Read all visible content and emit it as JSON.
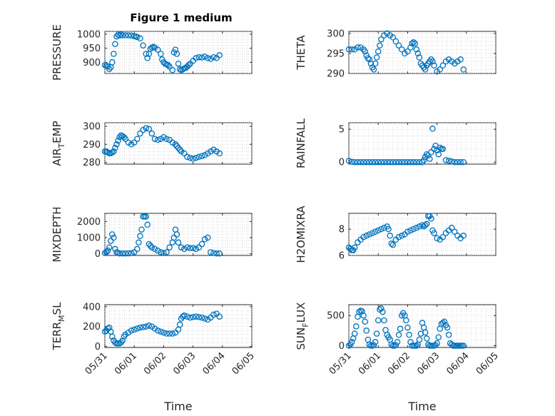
{
  "figure": {
    "title": "Figure 1 medium",
    "background": "#ffffff"
  },
  "colors": {
    "marker": "#0072BD",
    "axis": "#262626",
    "grid": "#c8c8c8"
  },
  "chart_data": [
    {
      "type": "scatter",
      "id": "pressure",
      "ylabel": "PRESSURE",
      "ylabel_sub": null,
      "ylim": [
        860,
        1010
      ],
      "yticks": [
        900,
        950,
        1000
      ],
      "xlim": [
        0,
        5
      ],
      "grid": true,
      "x": [
        0.0,
        0.05,
        0.1,
        0.15,
        0.2,
        0.25,
        0.3,
        0.35,
        0.4,
        0.45,
        0.5,
        0.55,
        0.6,
        0.7,
        0.8,
        0.9,
        1.0,
        1.05,
        1.1,
        1.2,
        1.3,
        1.4,
        1.45,
        1.5,
        1.55,
        1.6,
        1.65,
        1.7,
        1.8,
        1.9,
        1.95,
        2.0,
        2.05,
        2.1,
        2.15,
        2.2,
        2.3,
        2.35,
        2.4,
        2.45,
        2.5,
        2.55,
        2.6,
        2.65,
        2.7,
        2.75,
        2.8,
        2.85,
        2.9,
        3.0,
        3.1,
        3.2,
        3.3,
        3.4,
        3.5,
        3.6,
        3.7,
        3.8,
        3.9
      ],
      "y": [
        890,
        888,
        885,
        876,
        882,
        900,
        930,
        965,
        992,
        998,
        995,
        999,
        996,
        996,
        996,
        995,
        993,
        992,
        990,
        985,
        960,
        930,
        915,
        930,
        948,
        952,
        955,
        952,
        945,
        930,
        910,
        900,
        895,
        892,
        890,
        885,
        872,
        935,
        945,
        930,
        895,
        875,
        872,
        875,
        878,
        880,
        885,
        890,
        895,
        905,
        915,
        918,
        917,
        920,
        915,
        912,
        918,
        915,
        925
      ]
    },
    {
      "type": "scatter",
      "id": "theta",
      "ylabel": "THETA",
      "ylabel_sub": null,
      "ylim": [
        290,
        300.5
      ],
      "yticks": [
        290,
        295,
        300
      ],
      "xlim": [
        0,
        5
      ],
      "grid": true,
      "x": [
        0.0,
        0.1,
        0.2,
        0.3,
        0.4,
        0.5,
        0.55,
        0.6,
        0.65,
        0.7,
        0.75,
        0.8,
        0.85,
        0.9,
        0.95,
        1.0,
        1.05,
        1.1,
        1.2,
        1.3,
        1.4,
        1.5,
        1.6,
        1.7,
        1.8,
        1.9,
        2.0,
        2.1,
        2.15,
        2.2,
        2.25,
        2.3,
        2.35,
        2.4,
        2.45,
        2.5,
        2.55,
        2.6,
        2.65,
        2.7,
        2.75,
        2.8,
        2.85,
        2.9,
        3.0,
        3.1,
        3.2,
        3.3,
        3.4,
        3.5,
        3.6,
        3.7,
        3.8,
        3.9
      ],
      "y": [
        296,
        296,
        296,
        296.5,
        296.5,
        296,
        295.5,
        294.5,
        293.8,
        293.5,
        292.5,
        291.5,
        291,
        292.5,
        294,
        295.5,
        297,
        298.5,
        299.5,
        300,
        299.5,
        299,
        298,
        297,
        296,
        295,
        295.5,
        296.5,
        297.5,
        297.8,
        297.5,
        296,
        295,
        294,
        292.5,
        292,
        291.5,
        291,
        292,
        292.5,
        293,
        293.5,
        293,
        292,
        290.5,
        291,
        292,
        293,
        293.5,
        293,
        292.5,
        293,
        293.5,
        291
      ]
    },
    {
      "type": "scatter",
      "id": "airtemp",
      "ylabel": "AIR",
      "ylabel_sub": "T",
      "ylabel_after": "EMP",
      "ylim": [
        279,
        302
      ],
      "yticks": [
        280,
        290,
        300
      ],
      "xlim": [
        0,
        5
      ],
      "grid": true,
      "x": [
        0.0,
        0.05,
        0.1,
        0.15,
        0.2,
        0.25,
        0.3,
        0.35,
        0.4,
        0.45,
        0.5,
        0.55,
        0.6,
        0.65,
        0.7,
        0.8,
        0.9,
        1.0,
        1.1,
        1.2,
        1.3,
        1.4,
        1.5,
        1.6,
        1.7,
        1.8,
        1.9,
        2.0,
        2.1,
        2.2,
        2.3,
        2.4,
        2.45,
        2.5,
        2.55,
        2.6,
        2.7,
        2.8,
        2.9,
        3.0,
        3.1,
        3.2,
        3.3,
        3.4,
        3.5,
        3.6,
        3.7,
        3.8,
        3.9
      ],
      "y": [
        286,
        286,
        285.5,
        285,
        285,
        285.5,
        286,
        288,
        290,
        292,
        294,
        295,
        294.5,
        294,
        293,
        291,
        290,
        291,
        293,
        296,
        298,
        299,
        298.5,
        296,
        293,
        292.5,
        293,
        294,
        293,
        292.5,
        291,
        290,
        289,
        288,
        287,
        286,
        285,
        283,
        282.5,
        282,
        282.5,
        283,
        283.5,
        284,
        285,
        286,
        287,
        286,
        285
      ]
    },
    {
      "type": "scatter",
      "id": "rainfall",
      "ylabel": "RAINFALL",
      "ylabel_sub": null,
      "ylim": [
        -0.3,
        6
      ],
      "yticks": [
        0,
        5
      ],
      "xlim": [
        0,
        5
      ],
      "grid": true,
      "x": [
        0.0,
        0.1,
        0.2,
        0.3,
        0.4,
        0.5,
        0.6,
        0.7,
        0.8,
        0.9,
        1.0,
        1.1,
        1.2,
        1.3,
        1.4,
        1.5,
        1.6,
        1.7,
        1.8,
        1.9,
        2.0,
        2.1,
        2.2,
        2.3,
        2.4,
        2.5,
        2.55,
        2.6,
        2.65,
        2.7,
        2.75,
        2.8,
        2.85,
        2.9,
        2.95,
        3.0,
        3.05,
        3.1,
        3.15,
        3.2,
        3.3,
        3.4,
        3.5,
        3.6,
        3.7,
        3.8,
        3.9
      ],
      "y": [
        0.2,
        0.05,
        0,
        0,
        0,
        0,
        0,
        0,
        0,
        0,
        0,
        0,
        0,
        0,
        0,
        0,
        0,
        0,
        0,
        0,
        0,
        0,
        0,
        0,
        0,
        0,
        0.3,
        0.8,
        1.2,
        1.0,
        0.5,
        1.5,
        5.1,
        2.0,
        2.5,
        1.8,
        1.2,
        2.2,
        2.0,
        2.0,
        0.3,
        0.2,
        0.1,
        0,
        0,
        0,
        0
      ]
    },
    {
      "type": "scatter",
      "id": "mixdepth",
      "ylabel": "MIXDEPTH",
      "ylabel_sub": null,
      "ylim": [
        -100,
        2500
      ],
      "yticks": [
        0,
        1000,
        2000
      ],
      "xlim": [
        0,
        5
      ],
      "grid": true,
      "x": [
        0.0,
        0.05,
        0.1,
        0.15,
        0.2,
        0.25,
        0.3,
        0.35,
        0.4,
        0.45,
        0.5,
        0.6,
        0.7,
        0.8,
        0.9,
        1.0,
        1.1,
        1.15,
        1.2,
        1.25,
        1.3,
        1.35,
        1.4,
        1.45,
        1.5,
        1.55,
        1.6,
        1.7,
        1.8,
        1.9,
        2.0,
        2.1,
        2.2,
        2.3,
        2.35,
        2.4,
        2.45,
        2.5,
        2.6,
        2.7,
        2.8,
        2.9,
        3.0,
        3.1,
        3.2,
        3.3,
        3.4,
        3.5,
        3.6,
        3.7,
        3.8,
        3.9
      ],
      "y": [
        50,
        100,
        200,
        400,
        800,
        1200,
        1000,
        300,
        100,
        50,
        20,
        20,
        20,
        30,
        40,
        100,
        300,
        700,
        1100,
        1500,
        2300,
        2300,
        2300,
        1800,
        600,
        500,
        400,
        300,
        200,
        100,
        50,
        100,
        400,
        700,
        1000,
        1500,
        1200,
        700,
        400,
        300,
        400,
        350,
        350,
        300,
        400,
        600,
        900,
        1000,
        100,
        50,
        20,
        20
      ]
    },
    {
      "type": "scatter",
      "id": "h2omixra",
      "ylabel": "H2OMIXRA",
      "ylabel_sub": null,
      "ylim": [
        6,
        9.2
      ],
      "yticks": [
        6,
        8
      ],
      "xlim": [
        0,
        5
      ],
      "grid": true,
      "x": [
        0.0,
        0.05,
        0.1,
        0.15,
        0.2,
        0.3,
        0.4,
        0.5,
        0.6,
        0.7,
        0.8,
        0.9,
        1.0,
        1.1,
        1.2,
        1.3,
        1.35,
        1.4,
        1.45,
        1.5,
        1.6,
        1.7,
        1.8,
        1.9,
        2.0,
        2.1,
        2.2,
        2.3,
        2.4,
        2.5,
        2.55,
        2.6,
        2.65,
        2.7,
        2.75,
        2.8,
        2.85,
        2.9,
        3.0,
        3.1,
        3.2,
        3.3,
        3.4,
        3.5,
        3.6,
        3.7,
        3.8,
        3.9
      ],
      "y": [
        6.6,
        6.5,
        6.4,
        6.4,
        6.6,
        7.0,
        7.2,
        7.4,
        7.5,
        7.6,
        7.7,
        7.8,
        7.9,
        8.0,
        8.1,
        8.2,
        8.0,
        7.5,
        6.9,
        6.8,
        7.2,
        7.4,
        7.5,
        7.6,
        7.8,
        7.9,
        8.0,
        8.1,
        8.2,
        8.3,
        8.2,
        8.3,
        8.4,
        9.0,
        9.0,
        8.8,
        7.9,
        7.7,
        7.3,
        7.2,
        7.4,
        7.7,
        7.9,
        8.1,
        7.8,
        7.5,
        7.3,
        7.5
      ]
    },
    {
      "type": "scatter",
      "id": "terrmsl",
      "ylabel": "TERR",
      "ylabel_sub": "M",
      "ylabel_after": "SL",
      "ylim": [
        -10,
        420
      ],
      "yticks": [
        0,
        200,
        400
      ],
      "xlim": [
        0,
        5
      ],
      "grid": true,
      "x": [
        0.0,
        0.05,
        0.1,
        0.15,
        0.2,
        0.25,
        0.3,
        0.35,
        0.4,
        0.45,
        0.5,
        0.55,
        0.6,
        0.65,
        0.7,
        0.8,
        0.9,
        1.0,
        1.1,
        1.2,
        1.3,
        1.4,
        1.5,
        1.6,
        1.7,
        1.8,
        1.9,
        2.0,
        2.1,
        2.2,
        2.3,
        2.4,
        2.5,
        2.55,
        2.6,
        2.65,
        2.7,
        2.8,
        2.9,
        3.0,
        3.1,
        3.2,
        3.3,
        3.4,
        3.5,
        3.6,
        3.7,
        3.8,
        3.9
      ],
      "y": [
        150,
        160,
        180,
        190,
        150,
        100,
        60,
        40,
        30,
        30,
        30,
        40,
        60,
        100,
        120,
        140,
        160,
        170,
        180,
        190,
        195,
        200,
        210,
        200,
        180,
        160,
        150,
        140,
        130,
        130,
        130,
        140,
        170,
        220,
        280,
        300,
        310,
        300,
        290,
        295,
        300,
        295,
        290,
        280,
        270,
        290,
        320,
        330,
        300
      ]
    },
    {
      "type": "scatter",
      "id": "sunflux",
      "ylabel": "SUN",
      "ylabel_sub": "F",
      "ylabel_after": "LUX",
      "ylim": [
        -30,
        680
      ],
      "yticks": [
        0,
        500
      ],
      "xlim": [
        0,
        5
      ],
      "grid": true,
      "x": [
        0.0,
        0.05,
        0.1,
        0.15,
        0.2,
        0.25,
        0.3,
        0.35,
        0.4,
        0.45,
        0.5,
        0.55,
        0.6,
        0.65,
        0.7,
        0.75,
        0.8,
        0.85,
        0.9,
        0.95,
        1.0,
        1.05,
        1.1,
        1.15,
        1.2,
        1.25,
        1.3,
        1.35,
        1.4,
        1.45,
        1.5,
        1.55,
        1.6,
        1.65,
        1.7,
        1.75,
        1.8,
        1.85,
        1.9,
        1.95,
        2.0,
        2.05,
        2.1,
        2.15,
        2.2,
        2.25,
        2.3,
        2.35,
        2.4,
        2.45,
        2.5,
        2.55,
        2.6,
        2.65,
        2.7,
        2.75,
        2.8,
        2.85,
        2.9,
        2.95,
        3.0,
        3.05,
        3.1,
        3.15,
        3.2,
        3.25,
        3.3,
        3.35,
        3.4,
        3.45,
        3.5,
        3.55,
        3.6,
        3.65,
        3.7,
        3.75,
        3.8,
        3.85,
        3.9
      ],
      "y": [
        0,
        20,
        60,
        120,
        200,
        320,
        480,
        560,
        580,
        570,
        500,
        400,
        250,
        100,
        20,
        0,
        0,
        10,
        60,
        200,
        420,
        600,
        620,
        560,
        420,
        260,
        180,
        140,
        100,
        20,
        0,
        0,
        10,
        60,
        180,
        280,
        500,
        540,
        500,
        420,
        300,
        180,
        60,
        0,
        0,
        0,
        0,
        20,
        100,
        200,
        380,
        300,
        220,
        120,
        20,
        0,
        0,
        0,
        0,
        10,
        40,
        140,
        280,
        360,
        380,
        400,
        340,
        300,
        180,
        40,
        20,
        0,
        0,
        0,
        0,
        0,
        0,
        0,
        0
      ]
    }
  ],
  "xaxis": {
    "tick_labels": [
      "05/31",
      "06/01",
      "06/02",
      "06/03",
      "06/04",
      "06/05"
    ],
    "label": "Time"
  }
}
